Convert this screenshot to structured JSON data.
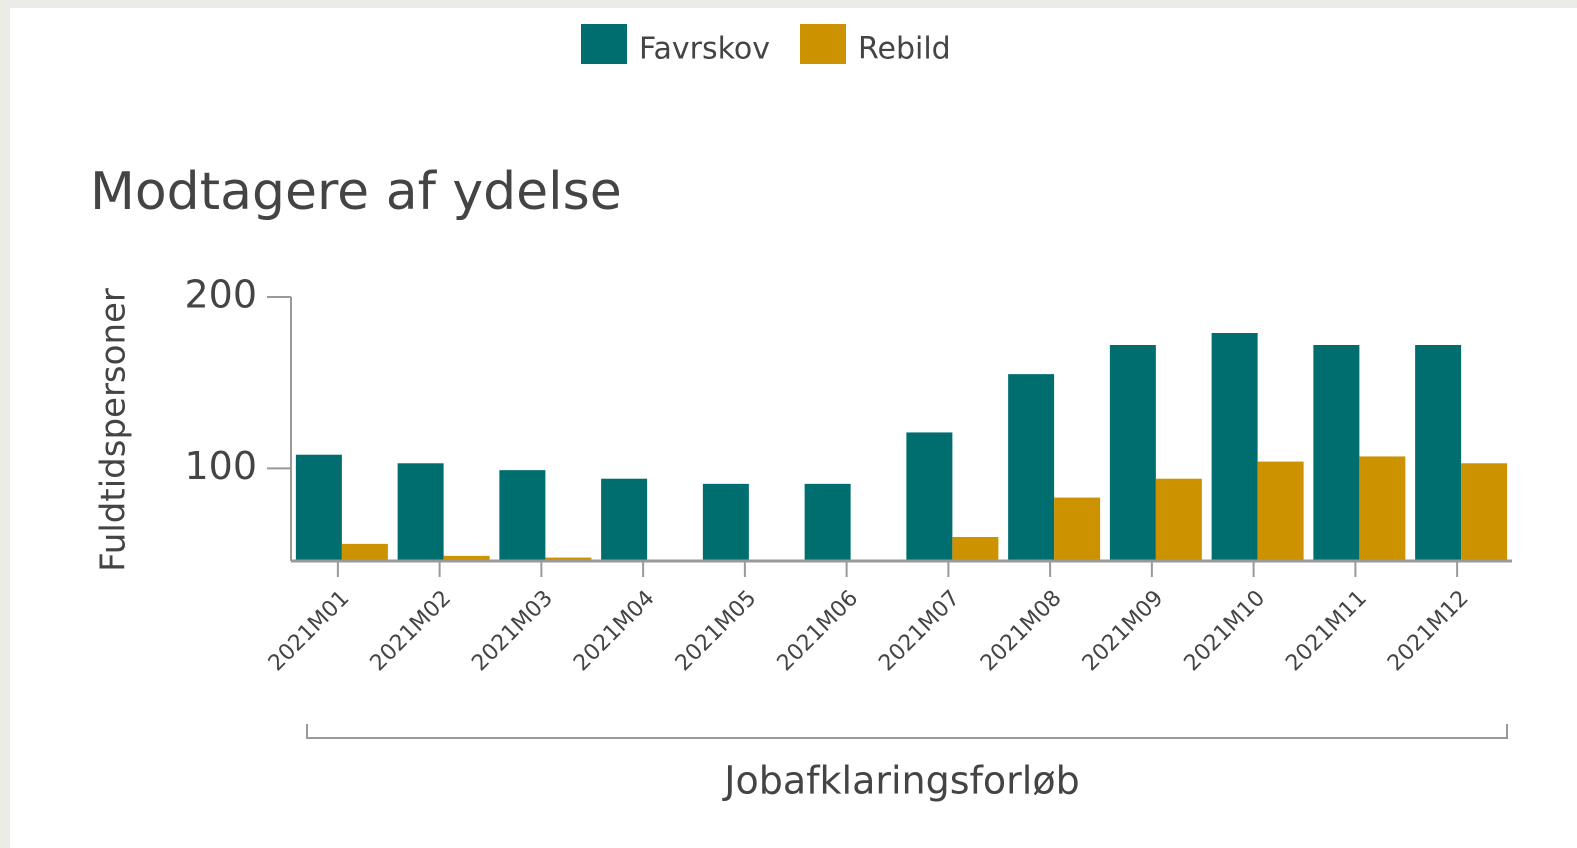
{
  "chart_data": {
    "type": "bar",
    "title": "Modtagere af ydelse",
    "y_label": "Fuldtidspersoner",
    "x_label": "Jobafklaringsforløb",
    "categories": [
      "2021M01",
      "2021M02",
      "2021M03",
      "2021M04",
      "2021M05",
      "2021M06",
      "2021M07",
      "2021M08",
      "2021M09",
      "2021M10",
      "2021M11",
      "2021M12"
    ],
    "series": [
      {
        "name": "Favrskov",
        "color": "#006e6e",
        "values": [
          108,
          103,
          99,
          94,
          91,
          91,
          121,
          155,
          172,
          179,
          172,
          172
        ]
      },
      {
        "name": "Rebild",
        "color": "#cc9200",
        "values": [
          56,
          49,
          48,
          null,
          null,
          null,
          60,
          83,
          94,
          104,
          107,
          103
        ]
      }
    ],
    "ylim": [
      46,
      200
    ],
    "yticks": [
      100,
      200
    ],
    "legend": "top"
  }
}
